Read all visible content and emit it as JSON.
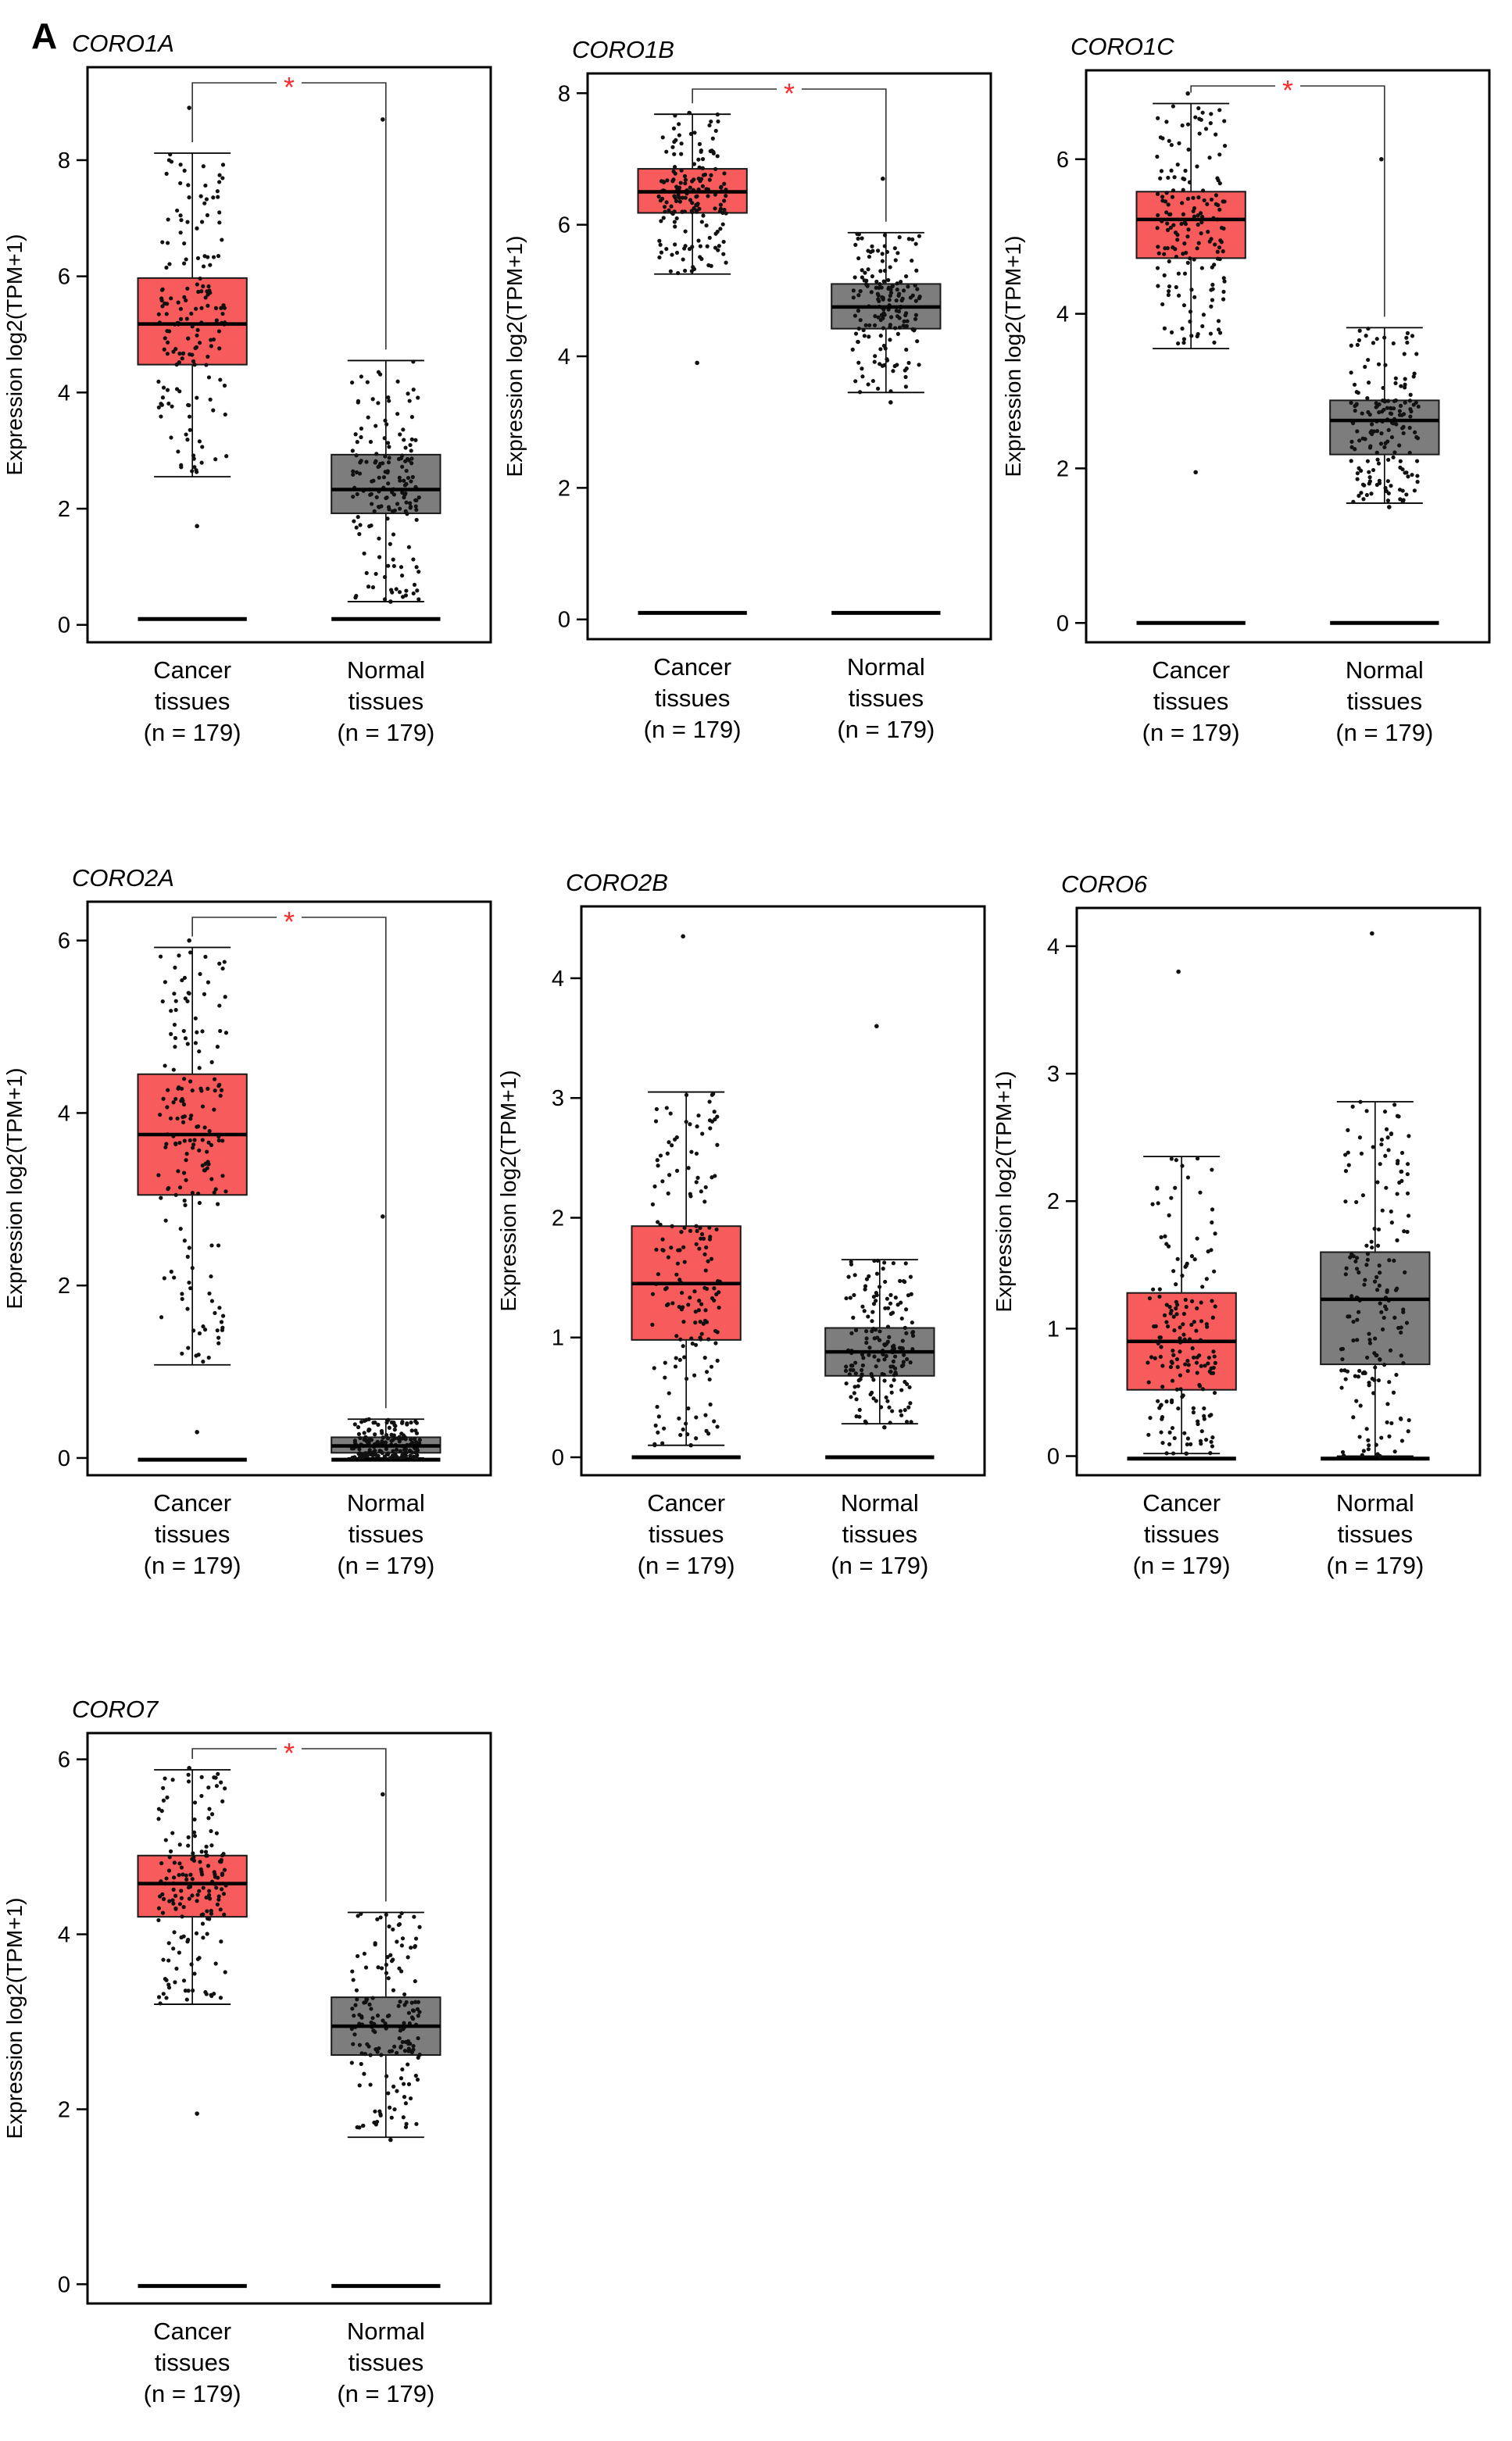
{
  "panel_letter": "A",
  "colors": {
    "cancer": "#f75b5b",
    "normal": "#7d7d7d",
    "star": "#ff2a2a"
  },
  "chart_data": [
    {
      "type": "box",
      "gene": "CORO1A",
      "ylabel": "Expression log2(TPM+1)",
      "yticks": [
        0,
        2,
        4,
        6,
        8
      ],
      "ylim": [
        -0.3,
        9.6
      ],
      "significant": true,
      "star": "*",
      "groups": [
        {
          "name": "Cancer",
          "label_line1": "Cancer",
          "label_line2": "tissues",
          "n_text": "(n = 179)",
          "q1": 4.48,
          "median": 5.18,
          "q3": 5.97,
          "whisker_low": 2.55,
          "whisker_high": 8.12,
          "point_min": 1.7,
          "point_max": 8.9,
          "baseline": 0.1
        },
        {
          "name": "Normal",
          "label_line1": "Normal",
          "label_line2": "tissues",
          "n_text": "(n = 179)",
          "q1": 1.92,
          "median": 2.33,
          "q3": 2.93,
          "whisker_low": 0.4,
          "whisker_high": 4.55,
          "point_min": 0.4,
          "point_max": 8.7,
          "baseline": 0.1
        }
      ]
    },
    {
      "type": "box",
      "gene": "CORO1B",
      "ylabel": "Expression log2(TPM+1)",
      "yticks": [
        0,
        2,
        4,
        6,
        8
      ],
      "ylim": [
        -0.3,
        8.3
      ],
      "significant": true,
      "star": "*",
      "groups": [
        {
          "name": "Cancer",
          "label_line1": "Cancer",
          "label_line2": "tissues",
          "n_text": "(n = 179)",
          "q1": 6.18,
          "median": 6.5,
          "q3": 6.85,
          "whisker_low": 5.25,
          "whisker_high": 7.68,
          "point_min": 3.9,
          "point_max": 7.7,
          "baseline": 0.1
        },
        {
          "name": "Normal",
          "label_line1": "Normal",
          "label_line2": "tissues",
          "n_text": "(n = 179)",
          "q1": 4.42,
          "median": 4.75,
          "q3": 5.1,
          "whisker_low": 3.45,
          "whisker_high": 5.88,
          "point_min": 3.3,
          "point_max": 6.7,
          "baseline": 0.1
        }
      ]
    },
    {
      "type": "box",
      "gene": "CORO1C",
      "ylabel": "Expression log2(TPM+1)",
      "yticks": [
        0,
        2,
        4,
        6
      ],
      "ylim": [
        -0.25,
        7.15
      ],
      "significant": true,
      "star": "*",
      "groups": [
        {
          "name": "Cancer",
          "label_line1": "Cancer",
          "label_line2": "tissues",
          "n_text": "(n = 179)",
          "q1": 4.72,
          "median": 5.22,
          "q3": 5.58,
          "whisker_low": 3.55,
          "whisker_high": 6.72,
          "point_min": 1.95,
          "point_max": 6.85,
          "baseline": 0.0
        },
        {
          "name": "Normal",
          "label_line1": "Normal",
          "label_line2": "tissues",
          "n_text": "(n = 179)",
          "q1": 2.18,
          "median": 2.62,
          "q3": 2.88,
          "whisker_low": 1.55,
          "whisker_high": 3.82,
          "point_min": 1.5,
          "point_max": 6.0,
          "baseline": 0.0
        }
      ]
    },
    {
      "type": "box",
      "gene": "CORO2A",
      "ylabel": "Expression log2(TPM+1)",
      "yticks": [
        0,
        2,
        4,
        6
      ],
      "ylim": [
        -0.2,
        6.45
      ],
      "significant": true,
      "star": "*",
      "groups": [
        {
          "name": "Cancer",
          "label_line1": "Cancer",
          "label_line2": "tissues",
          "n_text": "(n = 179)",
          "q1": 3.05,
          "median": 3.75,
          "q3": 4.45,
          "whisker_low": 1.08,
          "whisker_high": 5.92,
          "point_min": 0.3,
          "point_max": 6.0,
          "baseline": -0.02
        },
        {
          "name": "Normal",
          "label_line1": "Normal",
          "label_line2": "tissues",
          "n_text": "(n = 179)",
          "q1": 0.06,
          "median": 0.14,
          "q3": 0.24,
          "whisker_low": 0.0,
          "whisker_high": 0.45,
          "point_min": 0.0,
          "point_max": 2.8,
          "baseline": -0.02
        }
      ]
    },
    {
      "type": "box",
      "gene": "CORO2B",
      "ylabel": "Expression log2(TPM+1)",
      "yticks": [
        0,
        1,
        2,
        3,
        4
      ],
      "ylim": [
        -0.15,
        4.6
      ],
      "significant": false,
      "star": "",
      "groups": [
        {
          "name": "Cancer",
          "label_line1": "Cancer",
          "label_line2": "tissues",
          "n_text": "(n = 179)",
          "q1": 0.98,
          "median": 1.45,
          "q3": 1.93,
          "whisker_low": 0.1,
          "whisker_high": 3.05,
          "point_min": 0.1,
          "point_max": 4.35,
          "baseline": 0.0
        },
        {
          "name": "Normal",
          "label_line1": "Normal",
          "label_line2": "tissues",
          "n_text": "(n = 179)",
          "q1": 0.68,
          "median": 0.88,
          "q3": 1.08,
          "whisker_low": 0.28,
          "whisker_high": 1.65,
          "point_min": 0.25,
          "point_max": 3.6,
          "baseline": 0.0
        }
      ]
    },
    {
      "type": "box",
      "gene": "CORO6",
      "ylabel": "Expression log2(TPM+1)",
      "yticks": [
        0,
        1,
        2,
        3,
        4
      ],
      "ylim": [
        -0.15,
        4.3
      ],
      "significant": false,
      "star": "",
      "groups": [
        {
          "name": "Cancer",
          "label_line1": "Cancer",
          "label_line2": "tissues",
          "n_text": "(n = 179)",
          "q1": 0.52,
          "median": 0.9,
          "q3": 1.28,
          "whisker_low": 0.02,
          "whisker_high": 2.35,
          "point_min": 0.02,
          "point_max": 3.8,
          "baseline": -0.02
        },
        {
          "name": "Normal",
          "label_line1": "Normal",
          "label_line2": "tissues",
          "n_text": "(n = 179)",
          "q1": 0.72,
          "median": 1.23,
          "q3": 1.6,
          "whisker_low": 0.0,
          "whisker_high": 2.78,
          "point_min": 0.0,
          "point_max": 4.1,
          "baseline": -0.02
        }
      ]
    },
    {
      "type": "box",
      "gene": "CORO7",
      "ylabel": "Expression log2(TPM+1)",
      "yticks": [
        0,
        2,
        4,
        6
      ],
      "ylim": [
        -0.22,
        6.3
      ],
      "significant": true,
      "star": "*",
      "groups": [
        {
          "name": "Cancer",
          "label_line1": "Cancer",
          "label_line2": "tissues",
          "n_text": "(n = 179)",
          "q1": 4.2,
          "median": 4.58,
          "q3": 4.9,
          "whisker_low": 3.2,
          "whisker_high": 5.88,
          "point_min": 1.95,
          "point_max": 5.9,
          "baseline": -0.02
        },
        {
          "name": "Normal",
          "label_line1": "Normal",
          "label_line2": "tissues",
          "n_text": "(n = 179)",
          "q1": 2.62,
          "median": 2.95,
          "q3": 3.28,
          "whisker_low": 1.68,
          "whisker_high": 4.25,
          "point_min": 1.65,
          "point_max": 5.6,
          "baseline": -0.02
        }
      ]
    }
  ]
}
